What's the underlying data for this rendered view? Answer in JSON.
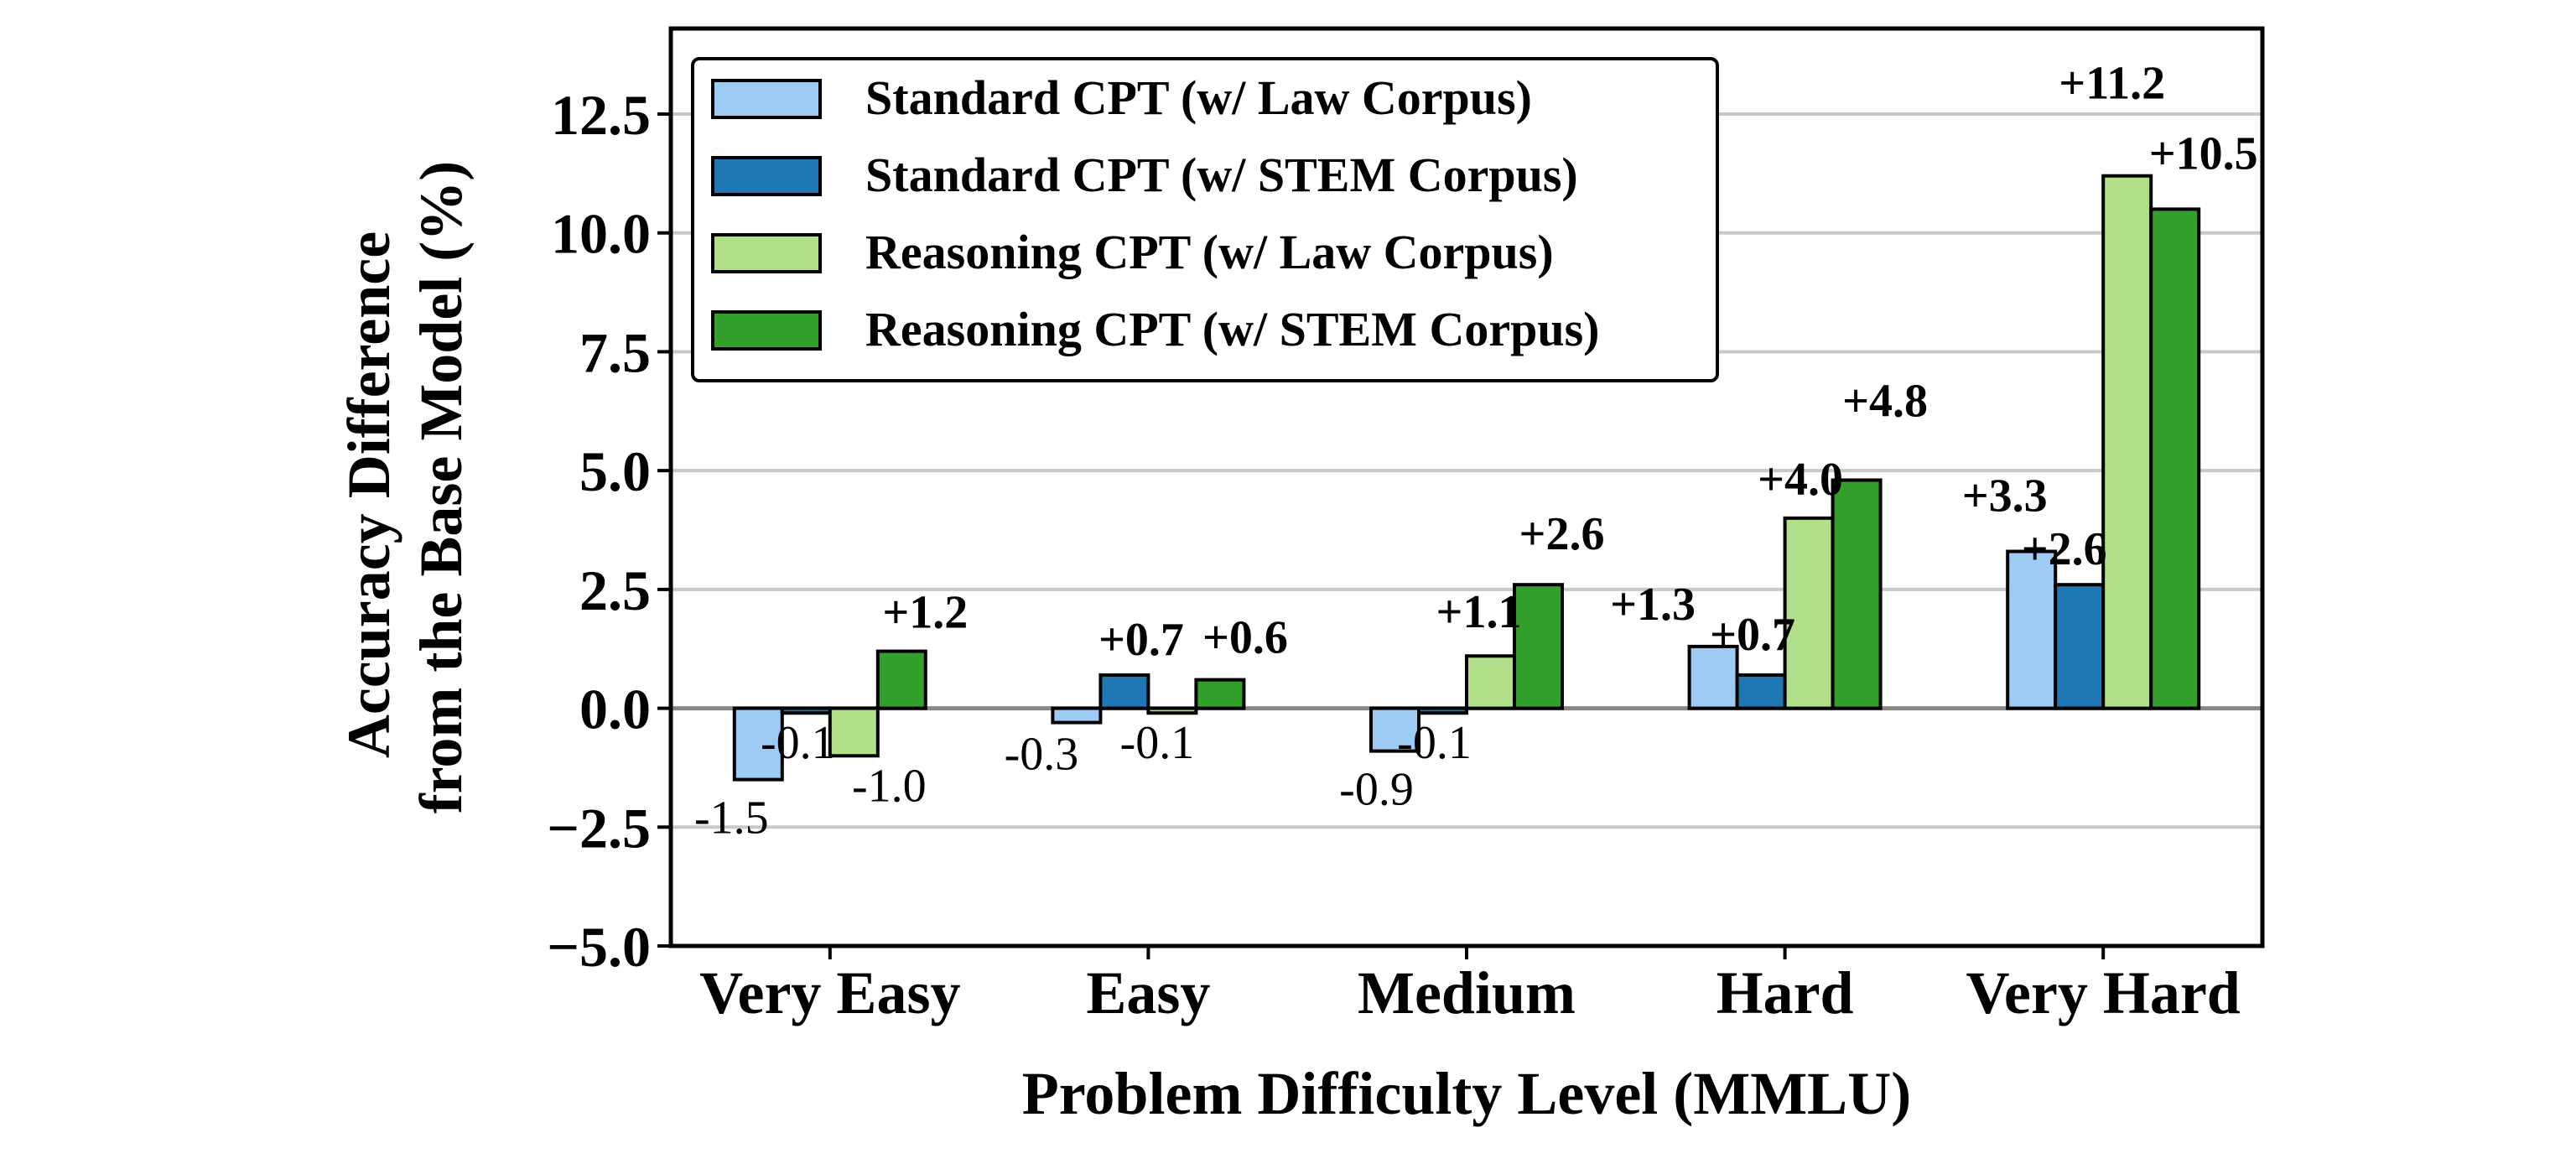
{
  "chart_data": {
    "type": "bar",
    "title": "",
    "xlabel": "Problem Difficulty Level (MMLU)",
    "ylabel_lines": [
      "Accuracy Difference",
      "from the Base Model (%)"
    ],
    "categories": [
      "Very Easy",
      "Easy",
      "Medium",
      "Hard",
      "Very Hard"
    ],
    "ylim": [
      -5.0,
      14.3
    ],
    "yticks": [
      -5.0,
      -2.5,
      0.0,
      2.5,
      5.0,
      7.5,
      10.0,
      12.5
    ],
    "ytick_labels": [
      "−5.0",
      "−2.5",
      "0.0",
      "2.5",
      "5.0",
      "7.5",
      "10.0",
      "12.5"
    ],
    "grid": "horizontal",
    "legend_position": "top-left",
    "series": [
      {
        "name": "Standard CPT (w/ Law Corpus)",
        "color": "#9ecbf3",
        "values": [
          -1.5,
          -0.3,
          -0.9,
          1.3,
          3.3
        ],
        "labels": [
          "-1.5",
          "-0.3",
          "-0.9",
          "+1.3",
          "+3.3"
        ]
      },
      {
        "name": "Standard CPT (w/ STEM Corpus)",
        "color": "#1f77b4",
        "values": [
          -0.1,
          0.7,
          -0.1,
          0.7,
          2.6
        ],
        "labels": [
          "-0.1",
          "+0.7",
          "-0.1",
          "+0.7",
          "+2.6"
        ]
      },
      {
        "name": "Reasoning CPT (w/ Law Corpus)",
        "color": "#b2df8a",
        "values": [
          -1.0,
          -0.1,
          1.1,
          4.0,
          11.2
        ],
        "labels": [
          "-1.0",
          "-0.1",
          "+1.1",
          "+4.0",
          "+11.2"
        ]
      },
      {
        "name": "Reasoning CPT (w/ STEM Corpus)",
        "color": "#33a02c",
        "values": [
          1.2,
          0.6,
          2.6,
          4.8,
          10.5
        ],
        "labels": [
          "+1.2",
          "+0.6",
          "+2.6",
          "+4.8",
          "+10.5"
        ]
      }
    ]
  }
}
